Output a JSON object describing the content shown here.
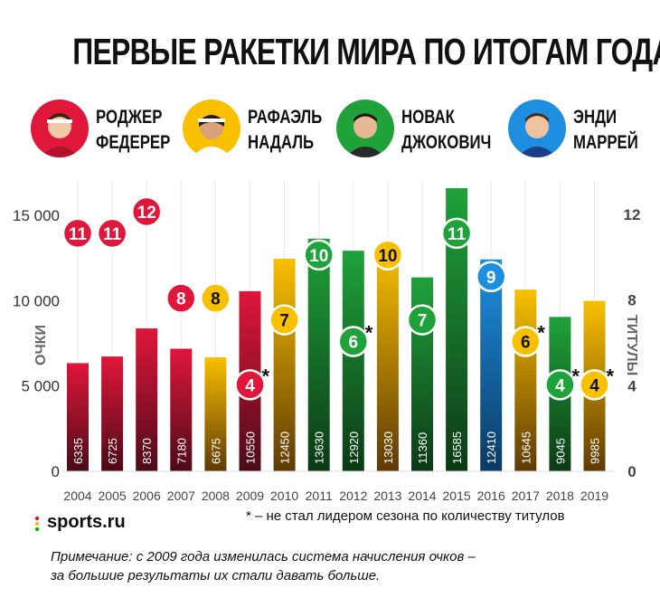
{
  "title": "ПЕРВЫЕ РАКЕТКИ МИРА ПО ИТОГАМ ГОДА",
  "players": [
    {
      "line1": "РОДЖЕР",
      "line2": "ФЕДЕРЕР",
      "color": "#e0163a",
      "avatar_bg": "#e0163a"
    },
    {
      "line1": "РАФАЭЛЬ",
      "line2": "НАДАЛЬ",
      "color": "#f9c000",
      "avatar_bg": "#f9c000"
    },
    {
      "line1": "НОВАК",
      "line2": "ДЖОКОВИЧ",
      "color": "#1fa23a",
      "avatar_bg": "#1fa23a"
    },
    {
      "line1": "ЭНДИ",
      "line2": "МАРРЕЙ",
      "color": "#1e8fe0",
      "avatar_bg": "#1e8fe0"
    }
  ],
  "chart_data": {
    "type": "bar",
    "title": "ПЕРВЫЕ РАКЕТКИ МИРА ПО ИТОГАМ ГОДА",
    "categories": [
      "2004",
      "2005",
      "2006",
      "2007",
      "2008",
      "2009",
      "2010",
      "2011",
      "2012",
      "2013",
      "2014",
      "2015",
      "2016",
      "2017",
      "2018",
      "2019"
    ],
    "values": [
      6335,
      6725,
      8370,
      7180,
      6675,
      10550,
      12450,
      13630,
      12920,
      13030,
      11360,
      16585,
      12410,
      10645,
      9045,
      9985
    ],
    "value_labels": [
      "6335",
      "6725",
      "8370",
      "7180",
      "6675",
      "10550",
      "12450",
      "13630",
      "12920",
      "13030",
      "11360",
      "16585",
      "12410",
      "10645",
      "9045",
      "9985"
    ],
    "players": [
      0,
      0,
      0,
      0,
      1,
      0,
      1,
      2,
      2,
      1,
      2,
      2,
      3,
      1,
      2,
      1
    ],
    "titles": [
      11,
      11,
      12,
      8,
      8,
      4,
      7,
      10,
      6,
      10,
      7,
      11,
      9,
      6,
      4,
      4
    ],
    "asterisk": [
      false,
      false,
      false,
      false,
      false,
      true,
      false,
      false,
      true,
      false,
      false,
      false,
      false,
      true,
      true,
      true
    ],
    "ylabel": "ОЧКИ",
    "y2label": "ТИТУЛЫ",
    "ylim": [
      0,
      16585
    ],
    "yticks": [
      0,
      5000,
      10000,
      15000
    ],
    "ytick_labels": [
      "0",
      "5 000",
      "10 000",
      "15 000"
    ],
    "y2lim": [
      0,
      16
    ],
    "y2ticks": [
      0,
      4,
      8,
      12
    ],
    "y2tick_labels": [
      "0",
      "4",
      "8",
      "12"
    ],
    "grid": true
  },
  "footer": {
    "logo": "sports.ru",
    "asterisk_note": "* – не стал лидером сезона по количеству титулов",
    "note_line1": "Примечание: с 2009 года изменилась система начисления очков –",
    "note_line2": "за большие результаты их стали давать больше."
  }
}
